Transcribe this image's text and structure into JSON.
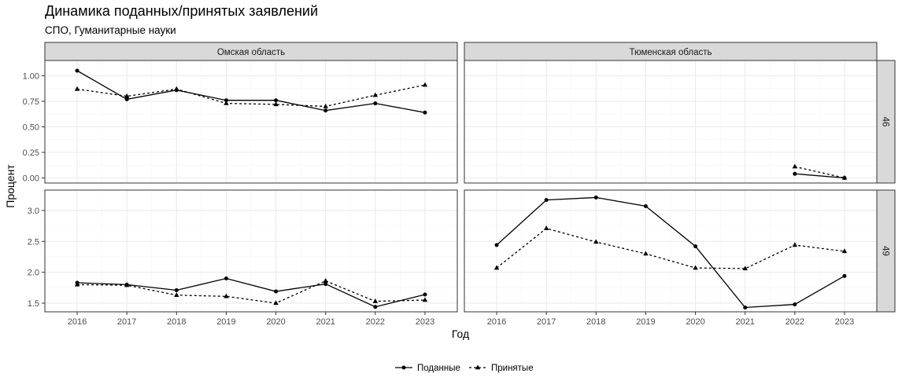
{
  "title": "Динамика поданных/принятых заявлений",
  "subtitle": "СПО, Гуманитарные науки",
  "xlabel": "Год",
  "ylabel": "Процент",
  "colors": {
    "strip_bg": "#d9d9d9",
    "panel_border": "#333333",
    "grid_major": "#ebebeb",
    "grid_minor": "#f5f5f5",
    "line": "#000000"
  },
  "legend": {
    "position": "bottom",
    "items": [
      {
        "label": "Поданные",
        "style": "solid",
        "marker": "circle"
      },
      {
        "label": "Принятые",
        "style": "dotted",
        "marker": "triangle"
      }
    ]
  },
  "chart_data": {
    "type": "line",
    "layout": "facet_grid",
    "columns": [
      "Омская область",
      "Тюменская область"
    ],
    "rows": [
      {
        "label": "46",
        "ylim": [
          -0.05,
          1.15
        ],
        "yticks": [
          0.0,
          0.25,
          0.5,
          0.75,
          1.0
        ],
        "ytick_labels": [
          "0.00",
          "0.25",
          "0.50",
          "0.75",
          "1.00"
        ]
      },
      {
        "label": "49",
        "ylim": [
          1.36,
          3.33
        ],
        "yticks": [
          1.5,
          2.0,
          2.5,
          3.0
        ],
        "ytick_labels": [
          "1.5",
          "2.0",
          "2.5",
          "3.0"
        ]
      }
    ],
    "x": [
      2016,
      2017,
      2018,
      2019,
      2020,
      2021,
      2022,
      2023
    ],
    "xlim": [
      2015.35,
      2023.65
    ],
    "grid": true,
    "panels": [
      {
        "column": "Омская область",
        "row": "46",
        "series": [
          {
            "name": "Поданные",
            "values": [
              1.05,
              0.77,
              0.86,
              0.76,
              0.76,
              0.66,
              0.73,
              0.64
            ]
          },
          {
            "name": "Принятые",
            "values": [
              0.87,
              0.8,
              0.87,
              0.73,
              0.72,
              0.7,
              0.81,
              0.91
            ]
          }
        ]
      },
      {
        "column": "Тюменская область",
        "row": "46",
        "series": [
          {
            "name": "Поданные",
            "values": [
              null,
              null,
              null,
              null,
              null,
              null,
              0.04,
              0.0
            ]
          },
          {
            "name": "Принятые",
            "values": [
              null,
              null,
              null,
              null,
              null,
              null,
              0.11,
              0.0
            ]
          }
        ]
      },
      {
        "column": "Омская область",
        "row": "49",
        "series": [
          {
            "name": "Поданные",
            "values": [
              1.83,
              1.8,
              1.71,
              1.9,
              1.69,
              1.81,
              1.44,
              1.64
            ]
          },
          {
            "name": "Принятые",
            "values": [
              1.8,
              1.79,
              1.63,
              1.61,
              1.5,
              1.86,
              1.53,
              1.55
            ]
          }
        ]
      },
      {
        "column": "Тюменская область",
        "row": "49",
        "series": [
          {
            "name": "Поданные",
            "values": [
              2.44,
              3.17,
              3.21,
              3.07,
              2.42,
              1.43,
              1.48,
              1.94
            ]
          },
          {
            "name": "Принятые",
            "values": [
              2.07,
              2.71,
              2.49,
              2.3,
              2.07,
              2.06,
              2.44,
              2.34
            ]
          }
        ]
      }
    ]
  }
}
